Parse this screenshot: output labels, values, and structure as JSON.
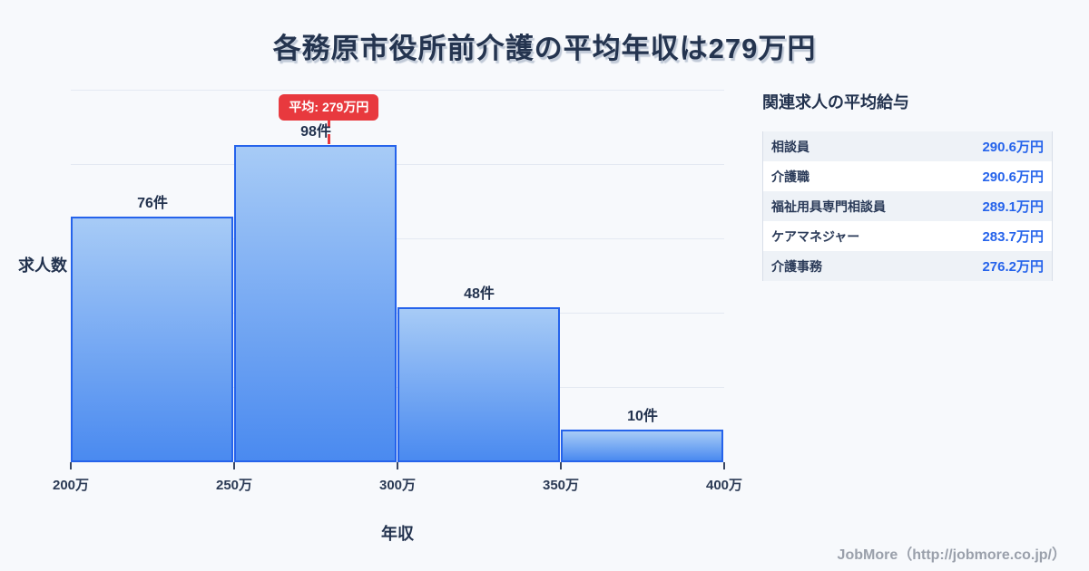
{
  "page": {
    "title": "各務原市役所前介護の平均年収は279万円"
  },
  "chart_data": {
    "type": "bar",
    "title": "各務原市役所前介護の平均年収は279万円",
    "xlabel": "年収",
    "ylabel": "求人数",
    "x_range": [
      200,
      400
    ],
    "ylim": [
      0,
      116
    ],
    "grid": true,
    "legend": false,
    "bins": [
      {
        "range": "200万-250万",
        "count": 76,
        "label": "76件"
      },
      {
        "range": "250万-300万",
        "count": 98,
        "label": "98件"
      },
      {
        "range": "300万-350万",
        "count": 48,
        "label": "48件"
      },
      {
        "range": "350万-400万",
        "count": 10,
        "label": "10件"
      }
    ],
    "x_ticks": [
      "200万",
      "250万",
      "300万",
      "350万",
      "400万"
    ],
    "x_tick_values": [
      200,
      250,
      300,
      350,
      400
    ],
    "average": {
      "value": 279,
      "badge_label": "平均: 279万円"
    }
  },
  "related_jobs": {
    "heading": "関連求人の平均給与",
    "rows": [
      {
        "label": "相談員",
        "value": "290.6万円"
      },
      {
        "label": "介護職",
        "value": "290.6万円"
      },
      {
        "label": "福祉用具専門相談員",
        "value": "289.1万円"
      },
      {
        "label": "ケアマネジャー",
        "value": "283.7万円"
      },
      {
        "label": "介護事務",
        "value": "276.2万円"
      }
    ]
  },
  "footer": {
    "credit": "JobMore（http://jobmore.co.jp/）"
  },
  "colors": {
    "accent_red": "#e8393e",
    "bar_border": "#2563eb",
    "bar_fill_top": "#a7cbf6",
    "bar_fill_bottom": "#4a8af0",
    "value_blue": "#2563eb",
    "title_navy": "#24344f",
    "background": "#f7f9fc"
  }
}
